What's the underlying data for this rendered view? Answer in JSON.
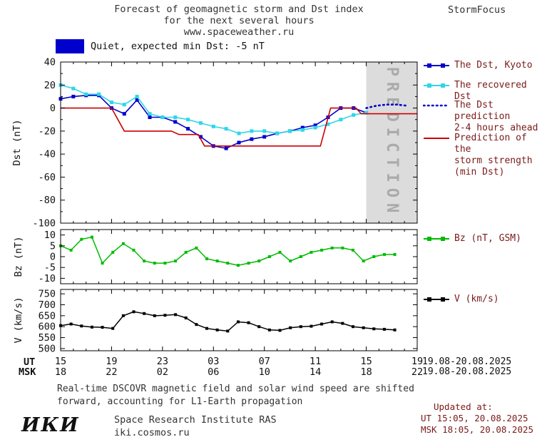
{
  "header": {
    "title_line1": "Forecast of geomagnetic storm and Dst index",
    "title_line2": "for the next several hours",
    "title_line3": "www.spaceweather.ru",
    "brand": "StormFocus"
  },
  "status": {
    "label": "Quiet, expected min Dst: -5 nT",
    "box_color": "#0000cc"
  },
  "legend": {
    "kyoto": "The Dst, Kyoto",
    "recovered": "The recovered Dst",
    "prediction_l1": "The Dst prediction",
    "prediction_l2": "2-4 hours ahead",
    "storm_l1": "Prediction of the",
    "storm_l2": "storm strength",
    "storm_l3": "(min Dst)",
    "bz": "Bz (nT, GSM)",
    "v": "V (km/s)"
  },
  "axis": {
    "ut_label": "UT",
    "msk_label": "MSK",
    "ut_date": "19.08-20.08.2025",
    "msk_date": "19.08-20.08.2025"
  },
  "footer": {
    "note_line1": "Real-time DSCOVR magnetic field and solar wind speed are shifted",
    "note_line2": "forward, accounting for L1-Earth propagation",
    "updated_label": "Updated at:",
    "updated_ut": "UT  15:05, 20.08.2025",
    "updated_msk": "MSK 18:05, 20.08.2025",
    "logo": "ИКИ",
    "institute": "Space Research Institute RAS",
    "site": "iki.cosmos.ru"
  },
  "chart_data": [
    {
      "type": "line",
      "panel": "dst",
      "ylabel": "Dst (nT)",
      "ylim": [
        -100,
        40
      ],
      "yticks": [
        40,
        20,
        0,
        -20,
        -40,
        -60,
        -80,
        -100
      ],
      "xlim": [
        0,
        28
      ],
      "xticks_hours": [
        0,
        4,
        8,
        12,
        16,
        20,
        24,
        28
      ],
      "xtick_labels_ut": [
        "15",
        "19",
        "23",
        "03",
        "07",
        "11",
        "15",
        "19"
      ],
      "xtick_labels_msk": [
        "18",
        "22",
        "02",
        "06",
        "10",
        "14",
        "18",
        "22"
      ],
      "prediction_band": {
        "x_start": 24,
        "x_end": 28,
        "label": "PREDICTION",
        "color": "#dcdcdc",
        "text_color": "#aaaaaa"
      },
      "series": [
        {
          "name": "The Dst, Kyoto",
          "color": "#0000cc",
          "style": "solid",
          "marker": "square",
          "width": 1.6,
          "x_start": 0,
          "x_step": 1,
          "values": [
            8,
            10,
            11,
            11,
            0,
            -5,
            7,
            -8,
            -8,
            -12,
            -18,
            -25,
            -33,
            -35,
            -30,
            -27,
            -25,
            -22,
            -20,
            -17,
            -15,
            -8,
            0,
            0,
            -4
          ]
        },
        {
          "name": "The recovered Dst",
          "color": "#2fd6e8",
          "style": "solid",
          "marker": "square",
          "width": 1.6,
          "x_start": 0,
          "x_step": 1,
          "values": [
            20,
            17,
            12,
            12,
            5,
            3,
            10,
            -5,
            -8,
            -8,
            -10,
            -13,
            -16,
            -18,
            -22,
            -20,
            -20,
            -22,
            -20,
            -19,
            -17,
            -14,
            -10,
            -6,
            -4
          ]
        },
        {
          "name": "The Dst prediction 2-4 hours ahead",
          "color": "#0000cc",
          "style": "dotted",
          "marker": "none",
          "width": 2.6,
          "x_start": 24,
          "x_step": 0.8,
          "values": [
            0,
            2,
            3,
            3,
            2
          ]
        },
        {
          "name": "Prediction of the storm strength (min Dst)",
          "color": "#cc0000",
          "style": "solid",
          "marker": "none",
          "width": 1.6,
          "points": [
            [
              0,
              0
            ],
            [
              4,
              0
            ],
            [
              5,
              -20
            ],
            [
              8.7,
              -20
            ],
            [
              9.3,
              -23
            ],
            [
              10.8,
              -23
            ],
            [
              11.3,
              -33
            ],
            [
              20.4,
              -33
            ],
            [
              21.2,
              0
            ],
            [
              23.2,
              0
            ],
            [
              23.6,
              -5
            ],
            [
              28,
              -5
            ]
          ]
        }
      ]
    },
    {
      "type": "line",
      "panel": "bz",
      "ylabel": "Bz (nT)",
      "ylim": [
        -12.5,
        12.5
      ],
      "yticks": [
        10,
        5,
        0,
        -5,
        -10
      ],
      "series": [
        {
          "name": "Bz (nT, GSM)",
          "color": "#00bb00",
          "style": "solid",
          "marker": "square",
          "width": 1.5,
          "x_start": 0,
          "x_step": 0.82,
          "values": [
            5,
            3,
            8,
            9,
            -3,
            2,
            6,
            3,
            -2,
            -3,
            -3,
            -2,
            2,
            4,
            -1,
            -2,
            -3,
            -4,
            -3,
            -2,
            0,
            2,
            -2,
            0,
            2,
            3,
            4,
            4,
            3,
            -2,
            0,
            1,
            1
          ]
        }
      ]
    },
    {
      "type": "line",
      "panel": "v",
      "ylabel": "V (km/s)",
      "ylim": [
        490,
        770
      ],
      "yticks": [
        750,
        700,
        650,
        600,
        550,
        500
      ],
      "series": [
        {
          "name": "V (km/s)",
          "color": "#000000",
          "style": "solid",
          "marker": "square",
          "width": 1.5,
          "x_start": 0,
          "x_step": 0.82,
          "values": [
            605,
            612,
            603,
            598,
            597,
            592,
            650,
            668,
            660,
            650,
            652,
            655,
            640,
            610,
            592,
            585,
            580,
            622,
            618,
            600,
            585,
            583,
            595,
            600,
            602,
            612,
            622,
            615,
            600,
            595,
            590,
            588,
            585
          ]
        }
      ]
    }
  ]
}
